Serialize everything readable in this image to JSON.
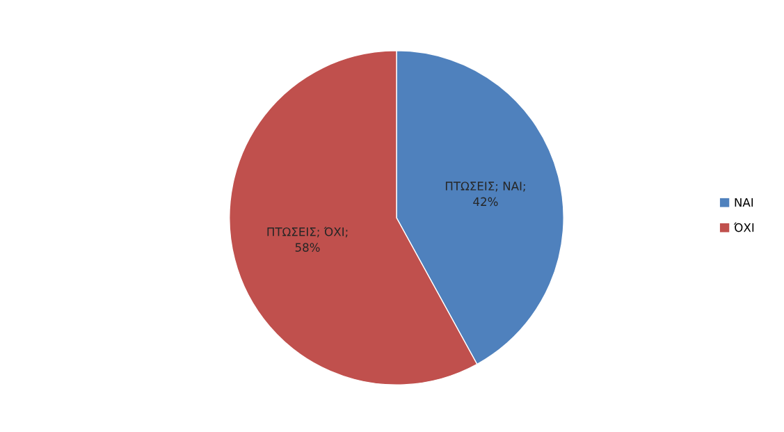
{
  "chart_data": {
    "type": "pie",
    "categories": [
      "ΝΑΙ",
      "ΌΧΙ"
    ],
    "values": [
      42,
      58
    ],
    "colors": [
      "#4f81bd",
      "#c0504d"
    ],
    "value_labels": [
      "ΠΤΩΣΕΙΣ; ΝΑΙ;\n42%",
      "ΠΤΩΣΕΙΣ; ΌΧΙ;\n58%"
    ],
    "legend": "right"
  }
}
